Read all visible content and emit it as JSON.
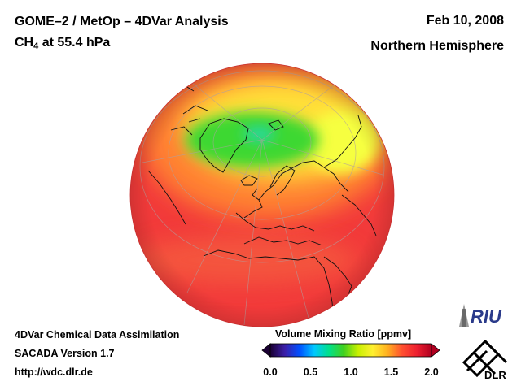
{
  "header": {
    "title": "GOME–2 / MetOp – 4DVar Analysis",
    "species": "CH",
    "species_subscript": "4",
    "level": "at 55.4 hPa",
    "date": "Feb 10, 2008",
    "region": "Northern Hemisphere"
  },
  "footer": {
    "line1": "4DVar Chemical Data Assimilation",
    "line2": "SACADA Version 1.7",
    "line3": "http://wdc.dlr.de"
  },
  "colorbar": {
    "title": "Volume Mixing Ratio [ppmv]",
    "ticks": [
      "0.0",
      "0.5",
      "1.0",
      "1.5",
      "2.0"
    ],
    "min": 0.0,
    "max": 2.0,
    "colors": [
      "#1a0033",
      "#3b1ea8",
      "#0050ff",
      "#00c8ff",
      "#00e08a",
      "#40d020",
      "#c8f000",
      "#fff030",
      "#ffb020",
      "#ff5030",
      "#ee2030",
      "#b00020"
    ]
  },
  "logos": {
    "riu": "RIU",
    "dlr": "DLR"
  },
  "map": {
    "projection": "orthographic",
    "hemisphere": "Northern Hemisphere"
  }
}
